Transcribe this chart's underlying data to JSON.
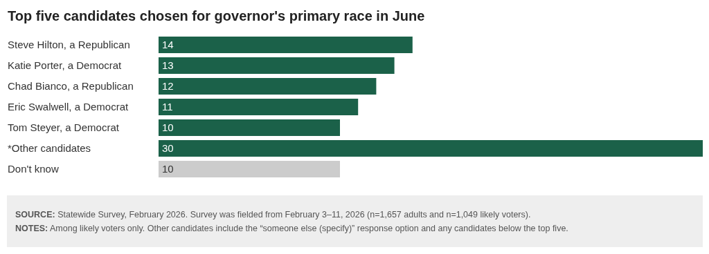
{
  "chart_data": {
    "type": "bar",
    "orientation": "horizontal",
    "title": "Top five candidates chosen for governor's primary race in June",
    "categories": [
      "Steve Hilton, a Republican",
      "Katie Porter, a Democrat",
      "Chad Bianco, a Republican",
      "Eric Swalwell, a Democrat",
      "Tom Steyer, a Democrat",
      "*Other candidates",
      "Don't know"
    ],
    "values": [
      14,
      13,
      12,
      11,
      10,
      30,
      10
    ],
    "colors": [
      "#1b6149",
      "#1b6149",
      "#1b6149",
      "#1b6149",
      "#1b6149",
      "#1b6149",
      "#cccccc"
    ],
    "data_labels": true,
    "annotations": [
      "SOURCE: Statewide Survey, February 2026. Survey was fielded from February 3–11, 2026 (n=1,657 adults and n=1,049 likely voters).",
      "NOTES: Among likely voters only. Other candidates include the “someone else (specify)” response option and any candidates below the top five."
    ]
  }
}
